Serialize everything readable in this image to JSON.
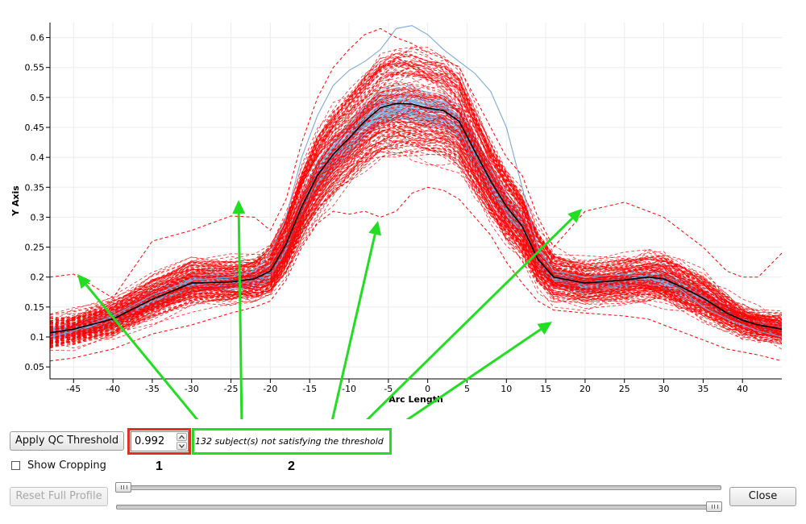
{
  "controls": {
    "apply_label": "Apply QC Threshold",
    "threshold_value": "0.992",
    "status_text": "132 subject(s) not satisfying the threshold",
    "show_cropping_label": "Show Cropping",
    "reset_label": "Reset Full Profile",
    "close_label": "Close",
    "annotation_1": "1",
    "annotation_2": "2"
  },
  "colors": {
    "failing_profiles": "#ff0000",
    "passing_profiles": "#7aa9d8",
    "mean_profile": "#000000",
    "qc_box": "#e0311f",
    "annotation_arrows": "#22dd22"
  },
  "chart_data": {
    "type": "line",
    "xlabel": "Arc Length",
    "ylabel": "Y Axis",
    "xlim": [
      -48,
      45
    ],
    "ylim": [
      0.03,
      0.625
    ],
    "xticks": [
      -45,
      -40,
      -35,
      -30,
      -25,
      -20,
      -15,
      -10,
      -5,
      0,
      5,
      10,
      15,
      20,
      25,
      30,
      35,
      40
    ],
    "yticks": [
      0.05,
      0.1,
      0.15,
      0.2,
      0.25,
      0.3,
      0.35,
      0.4,
      0.45,
      0.5,
      0.55,
      0.6
    ],
    "grid": true,
    "x": [
      -48,
      -45,
      -40,
      -35,
      -30,
      -25,
      -22,
      -20,
      -18,
      -16,
      -14,
      -12,
      -10,
      -8,
      -6,
      -4,
      -2,
      0,
      2,
      4,
      6,
      8,
      10,
      12,
      14,
      16,
      20,
      25,
      28,
      30,
      32,
      35,
      38,
      40,
      42,
      45
    ],
    "series": [
      {
        "name": "",
        "style": "solid",
        "values": [
          0.107,
          0.113,
          0.13,
          0.163,
          0.19,
          0.192,
          0.197,
          0.21,
          0.255,
          0.318,
          0.37,
          0.405,
          0.432,
          0.46,
          0.483,
          0.49,
          0.489,
          0.482,
          0.478,
          0.46,
          0.41,
          0.36,
          0.318,
          0.285,
          0.23,
          0.2,
          0.19,
          0.195,
          0.2,
          0.197,
          0.185,
          0.165,
          0.14,
          0.128,
          0.12,
          0.113
        ]
      },
      {
        "name": "",
        "style": "solid",
        "values": [
          0.1,
          0.11,
          0.135,
          0.17,
          0.195,
          0.2,
          0.21,
          0.24,
          0.3,
          0.4,
          0.47,
          0.52,
          0.545,
          0.56,
          0.58,
          0.615,
          0.62,
          0.605,
          0.58,
          0.56,
          0.54,
          0.51,
          0.45,
          0.35,
          0.25,
          0.21,
          0.2,
          0.205,
          0.2,
          0.19,
          0.18,
          0.15,
          0.13,
          0.12,
          0.11,
          0.1
        ]
      },
      {
        "name": "",
        "style": "dashed",
        "values": [
          0.2,
          0.205,
          0.165,
          0.26,
          0.278,
          0.302,
          0.3,
          0.278,
          0.33,
          0.425,
          0.5,
          0.55,
          0.58,
          0.605,
          0.615,
          0.6,
          0.59,
          0.575,
          0.565,
          0.55,
          0.5,
          0.45,
          0.4,
          0.37,
          0.3,
          0.25,
          0.31,
          0.325,
          0.31,
          0.3,
          0.28,
          0.25,
          0.21,
          0.2,
          0.2,
          0.24
        ]
      },
      {
        "name": "",
        "style": "dashed",
        "values": [
          0.06,
          0.065,
          0.08,
          0.105,
          0.12,
          0.14,
          0.15,
          0.16,
          0.195,
          0.25,
          0.29,
          0.31,
          0.305,
          0.31,
          0.3,
          0.31,
          0.34,
          0.35,
          0.345,
          0.33,
          0.3,
          0.27,
          0.225,
          0.19,
          0.16,
          0.145,
          0.14,
          0.135,
          0.13,
          0.12,
          0.11,
          0.095,
          0.08,
          0.075,
          0.07,
          0.06
        ]
      }
    ]
  }
}
